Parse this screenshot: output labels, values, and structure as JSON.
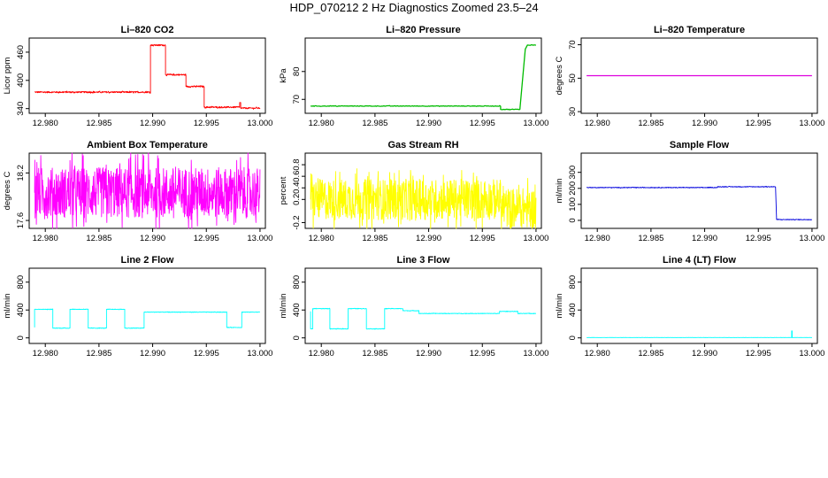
{
  "figure_title": "HDP_070212  2 Hz Diagnostics Zoomed 23.5–24",
  "chart_data": [
    {
      "type": "line",
      "title": "Li–820 CO2",
      "ylabel": "Licor ppm",
      "color": "#ff0000",
      "xlim": [
        12.9785,
        13.0005
      ],
      "ylim": [
        330,
        490
      ],
      "x_ticks": [
        "12.980",
        "12.985",
        "12.990",
        "12.995",
        "13.000"
      ],
      "y_ticks": [
        340,
        400,
        460
      ],
      "noise": 1.5,
      "series": [
        {
          "x": [
            12.979,
            12.9898,
            12.9898,
            12.9912,
            12.9912,
            12.9931,
            12.9931,
            12.9948,
            12.9948,
            12.9981,
            12.9981,
            12.9982,
            12.9982,
            13.0
          ],
          "y": [
            375,
            375,
            475,
            475,
            412,
            412,
            387,
            387,
            343,
            343,
            353,
            353,
            341,
            341
          ]
        }
      ]
    },
    {
      "type": "line",
      "title": "Li–820 Pressure",
      "ylabel": "kPa",
      "color": "#00bb00",
      "xlim": [
        12.9785,
        13.0005
      ],
      "ylim": [
        65,
        92
      ],
      "x_ticks": [
        "12.980",
        "12.985",
        "12.990",
        "12.995",
        "13.000"
      ],
      "y_ticks": [
        70,
        80
      ],
      "noise": 0.1,
      "series": [
        {
          "x": [
            12.979,
            12.9967,
            12.9967,
            12.9985,
            12.999,
            12.9992,
            13.0
          ],
          "y": [
            67.6,
            67.6,
            66.4,
            66.4,
            88.0,
            89.5,
            89.5
          ]
        }
      ]
    },
    {
      "type": "line",
      "title": "Li–820 Temperature",
      "ylabel": "degrees C",
      "color": "#dd00dd",
      "xlim": [
        12.9785,
        13.0005
      ],
      "ylim": [
        29,
        74
      ],
      "x_ticks": [
        "12.980",
        "12.985",
        "12.990",
        "12.995",
        "13.000"
      ],
      "y_ticks": [
        30,
        50,
        70
      ],
      "noise": 0,
      "series": [
        {
          "x": [
            12.979,
            13.0
          ],
          "y": [
            51.5,
            51.5
          ]
        }
      ]
    },
    {
      "type": "line",
      "title": "Ambient Box Temperature",
      "ylabel": "degrees C",
      "color": "#ff00ff",
      "xlim": [
        12.9785,
        13.0005
      ],
      "ylim": [
        17.5,
        18.45
      ],
      "x_ticks": [
        "12.980",
        "12.985",
        "12.990",
        "12.995",
        "13.000"
      ],
      "y_ticks": [
        17.6,
        18.2
      ],
      "noise": 0.32,
      "series": [
        {
          "x": [
            12.979,
            13.0
          ],
          "y": [
            17.95,
            17.95
          ]
        }
      ]
    },
    {
      "type": "line",
      "title": "Gas Stream RH",
      "ylabel": "percent",
      "color": "#ffff00",
      "xlim": [
        12.9785,
        13.0005
      ],
      "ylim": [
        -0.3,
        1.0
      ],
      "x_ticks": [
        "12.980",
        "12.985",
        "12.990",
        "12.995",
        "13.000"
      ],
      "y_ticks": [
        -0.2,
        0.2,
        0.4,
        0.6,
        0.8
      ],
      "noise": 0.35,
      "series": [
        {
          "x": [
            12.979,
            12.9967,
            12.9967,
            13.0
          ],
          "y": [
            0.2,
            0.2,
            0.05,
            0.05
          ]
        }
      ]
    },
    {
      "type": "line",
      "title": "Sample Flow",
      "ylabel": "ml/min",
      "color": "#0000dd",
      "xlim": [
        12.9785,
        13.0005
      ],
      "ylim": [
        -50,
        420
      ],
      "x_ticks": [
        "12.980",
        "12.985",
        "12.990",
        "12.995",
        "13.000"
      ],
      "y_ticks": [
        0,
        100,
        200,
        300
      ],
      "noise": 2,
      "series": [
        {
          "x": [
            12.979,
            12.9912,
            12.9912,
            12.9966,
            12.9967,
            13.0
          ],
          "y": [
            205,
            205,
            210,
            210,
            5,
            5
          ]
        }
      ]
    },
    {
      "type": "line",
      "title": "Line 2 Flow",
      "ylabel": "ml/min",
      "color": "#00ffff",
      "xlim": [
        12.9785,
        13.0005
      ],
      "ylim": [
        -80,
        1000
      ],
      "x_ticks": [
        "12.980",
        "12.985",
        "12.990",
        "12.995",
        "13.000"
      ],
      "y_ticks": [
        0,
        400,
        800
      ],
      "noise": 4,
      "series": [
        {
          "x": [
            12.979,
            12.979,
            12.9807,
            12.9807,
            12.9823,
            12.9823,
            12.984,
            12.984,
            12.9857,
            12.9857,
            12.9874,
            12.9874,
            12.9892,
            12.9892,
            12.9969,
            12.9969,
            12.9983,
            12.9983,
            13.0
          ],
          "y": [
            150,
            410,
            410,
            140,
            140,
            410,
            410,
            140,
            140,
            410,
            410,
            140,
            140,
            370,
            370,
            150,
            150,
            370,
            370
          ]
        }
      ]
    },
    {
      "type": "line",
      "title": "Line 3 Flow",
      "ylabel": "ml/min",
      "color": "#00ffff",
      "xlim": [
        12.9785,
        13.0005
      ],
      "ylim": [
        -80,
        1000
      ],
      "x_ticks": [
        "12.980",
        "12.985",
        "12.990",
        "12.995",
        "13.000"
      ],
      "y_ticks": [
        0,
        400,
        800
      ],
      "noise": 4,
      "series": [
        {
          "x": [
            12.979,
            12.979,
            12.9792,
            12.9792,
            12.9808,
            12.9808,
            12.9825,
            12.9825,
            12.9842,
            12.9842,
            12.9859,
            12.9859,
            12.9876,
            12.9876,
            12.9891,
            12.9891,
            12.9966,
            12.9966,
            12.9983,
            12.9983,
            13.0
          ],
          "y": [
            380,
            130,
            130,
            420,
            420,
            130,
            130,
            420,
            420,
            130,
            130,
            420,
            420,
            390,
            390,
            350,
            350,
            380,
            380,
            350,
            350
          ]
        }
      ]
    },
    {
      "type": "line",
      "title": "Line 4 (LT) Flow",
      "ylabel": "ml/min",
      "color": "#00ffff",
      "xlim": [
        12.9785,
        13.0005
      ],
      "ylim": [
        -80,
        1000
      ],
      "x_ticks": [
        "12.980",
        "12.985",
        "12.990",
        "12.995",
        "13.000"
      ],
      "y_ticks": [
        0,
        400,
        800
      ],
      "noise": 1,
      "series": [
        {
          "x": [
            12.979,
            12.9981,
            12.9981,
            12.99815,
            12.99815,
            13.0
          ],
          "y": [
            5,
            5,
            100,
            100,
            5,
            5
          ]
        }
      ]
    }
  ]
}
